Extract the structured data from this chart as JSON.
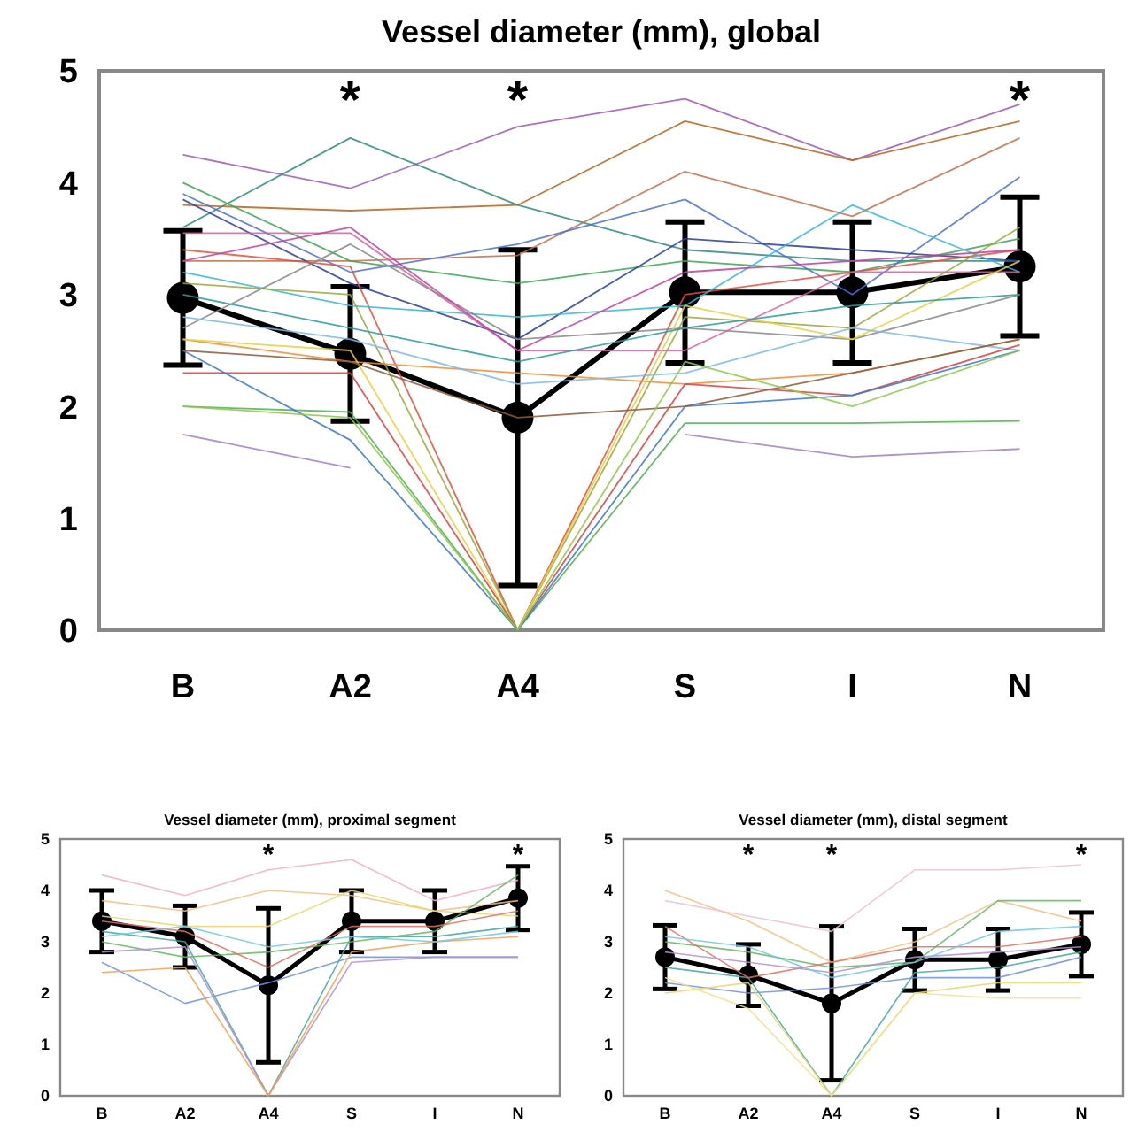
{
  "chart_data": [
    {
      "type": "line",
      "title": "Vessel diameter (mm), global",
      "categories": [
        "B",
        "A2",
        "A4",
        "S",
        "I",
        "N"
      ],
      "ylim": [
        0,
        5
      ],
      "yticks": [
        0,
        1,
        2,
        3,
        4,
        5
      ],
      "grid": false,
      "annotations": [
        "*",
        "*",
        "*"
      ],
      "series": [
        {
          "color": "#9b59b6",
          "marker": "none",
          "values": [
            4.25,
            3.95,
            4.5,
            4.75,
            4.2,
            4.7
          ]
        },
        {
          "color": "#2e8b7a",
          "marker": "none",
          "values": [
            3.6,
            4.4,
            3.8,
            3.4,
            3.3,
            3.3
          ]
        },
        {
          "color": "#b5651d",
          "marker": "none",
          "values": [
            3.8,
            3.75,
            3.8,
            4.55,
            4.2,
            4.55
          ]
        },
        {
          "color": "#c0704a",
          "marker": "none",
          "values": [
            3.3,
            3.3,
            3.35,
            4.1,
            3.7,
            4.4
          ]
        },
        {
          "color": "#3aa655",
          "marker": "none",
          "values": [
            4.0,
            3.3,
            3.1,
            3.3,
            3.2,
            3.5
          ]
        },
        {
          "color": "#4a6fd8",
          "marker": "none",
          "values": [
            3.9,
            3.2,
            3.45,
            3.85,
            3.0,
            4.05
          ]
        },
        {
          "color": "#2c3e9e",
          "marker": "none",
          "values": [
            3.85,
            3.1,
            2.6,
            3.5,
            3.4,
            3.3
          ]
        },
        {
          "color": "#e0503a",
          "marker": "none",
          "values": [
            3.4,
            3.25,
            0,
            3.0,
            3.2,
            3.4
          ]
        },
        {
          "color": "#36b7d8",
          "marker": "none",
          "values": [
            3.2,
            2.9,
            2.8,
            2.9,
            3.8,
            3.2
          ]
        },
        {
          "color": "#9aa83a",
          "marker": "none",
          "values": [
            3.1,
            3.0,
            0,
            2.8,
            2.7,
            3.6
          ]
        },
        {
          "color": "#d85fa0",
          "marker": "none",
          "values": [
            3.55,
            3.55,
            2.5,
            2.5,
            3.2,
            3.2
          ]
        },
        {
          "color": "#888888",
          "marker": "none",
          "values": [
            2.7,
            3.45,
            2.6,
            2.7,
            2.6,
            3.0
          ]
        },
        {
          "color": "#f08c30",
          "marker": "none",
          "values": [
            2.6,
            2.4,
            2.3,
            2.2,
            2.3,
            2.6
          ]
        },
        {
          "color": "#e8d040",
          "marker": "none",
          "values": [
            2.6,
            2.5,
            0,
            2.9,
            2.6,
            3.3
          ]
        },
        {
          "color": "#7fb8e8",
          "marker": "none",
          "values": [
            2.8,
            2.6,
            2.2,
            2.3,
            2.7,
            2.5
          ]
        },
        {
          "color": "#d84040",
          "marker": "none",
          "values": [
            2.3,
            2.3,
            0,
            2.2,
            2.1,
            2.55
          ]
        },
        {
          "color": "#50b050",
          "marker": "none",
          "values": [
            2.0,
            1.95,
            0,
            1.85,
            1.85,
            1.87
          ]
        },
        {
          "color": "#a080c8",
          "marker": "none",
          "values": [
            1.75,
            1.45,
            null,
            1.75,
            1.55,
            1.62
          ]
        },
        {
          "color": "#3a78c8",
          "marker": "none",
          "values": [
            2.5,
            1.7,
            0,
            2.0,
            2.1,
            2.5
          ]
        },
        {
          "color": "#8b5a3c",
          "marker": "none",
          "values": [
            2.5,
            2.4,
            1.9,
            2.0,
            2.3,
            2.6
          ]
        },
        {
          "color": "#8cc84a",
          "marker": "none",
          "values": [
            2.0,
            1.9,
            0,
            2.4,
            2.0,
            2.5
          ]
        },
        {
          "color": "#2a9a9a",
          "marker": "none",
          "values": [
            3.0,
            2.7,
            2.4,
            2.7,
            2.9,
            3.0
          ]
        },
        {
          "color": "#c040a0",
          "marker": "none",
          "values": [
            3.3,
            3.6,
            2.5,
            3.2,
            3.3,
            3.4
          ]
        },
        {
          "color": "#000000",
          "marker": "circle",
          "values": [
            2.97,
            2.47,
            1.9,
            3.02,
            3.02,
            3.25
          ],
          "errors": [
            0.6,
            0.6,
            1.5,
            0.63,
            0.63,
            0.62
          ]
        }
      ]
    },
    {
      "type": "line",
      "title": "Vessel diameter (mm), proximal segment",
      "categories": [
        "B",
        "A2",
        "A4",
        "S",
        "I",
        "N"
      ],
      "ylim": [
        0,
        5
      ],
      "yticks": [
        0,
        1,
        2,
        3,
        4,
        5
      ],
      "grid": false,
      "annotations": [
        "*",
        "*"
      ],
      "series": [
        {
          "color": "#f5c080",
          "marker": "none",
          "values": [
            3.8,
            3.6,
            4.0,
            3.9,
            3.6,
            3.8
          ]
        },
        {
          "color": "#f0b0c0",
          "marker": "none",
          "values": [
            4.3,
            3.9,
            4.4,
            4.6,
            3.8,
            4.2
          ]
        },
        {
          "color": "#40a8a0",
          "marker": "none",
          "values": [
            3.2,
            3.0,
            0,
            3.1,
            3.1,
            3.3
          ]
        },
        {
          "color": "#7090e0",
          "marker": "none",
          "values": [
            2.6,
            1.8,
            2.2,
            2.7,
            2.7,
            2.7
          ]
        },
        {
          "color": "#60b860",
          "marker": "none",
          "values": [
            3.0,
            2.7,
            2.8,
            3.0,
            3.2,
            4.3
          ]
        },
        {
          "color": "#e8d870",
          "marker": "none",
          "values": [
            3.5,
            3.3,
            3.3,
            4.0,
            3.6,
            3.5
          ]
        },
        {
          "color": "#b090d0",
          "marker": "none",
          "values": [
            2.8,
            2.9,
            0,
            2.6,
            2.7,
            2.7
          ]
        },
        {
          "color": "#e07060",
          "marker": "none",
          "values": [
            3.4,
            3.2,
            2.5,
            3.3,
            3.3,
            3.6
          ]
        },
        {
          "color": "#f0a050",
          "marker": "none",
          "values": [
            2.4,
            2.5,
            0,
            2.8,
            3.0,
            3.1
          ]
        },
        {
          "color": "#70c8e0",
          "marker": "none",
          "values": [
            3.1,
            3.3,
            2.9,
            3.1,
            3.0,
            3.2
          ]
        },
        {
          "color": "#000000",
          "marker": "circle",
          "values": [
            3.4,
            3.1,
            2.15,
            3.4,
            3.4,
            3.85
          ],
          "errors": [
            0.6,
            0.6,
            1.5,
            0.6,
            0.6,
            0.62
          ]
        }
      ]
    },
    {
      "type": "line",
      "title": "Vessel diameter (mm), distal segment",
      "categories": [
        "B",
        "A2",
        "A4",
        "S",
        "I",
        "N"
      ],
      "ylim": [
        0,
        5
      ],
      "yticks": [
        0,
        1,
        2,
        3,
        4,
        5
      ],
      "grid": false,
      "annotations": [
        "*",
        "*",
        "*"
      ],
      "series": [
        {
          "color": "#f5c080",
          "marker": "none",
          "values": [
            4.0,
            3.4,
            2.6,
            3.0,
            3.8,
            3.4
          ]
        },
        {
          "color": "#f0c0d0",
          "marker": "none",
          "values": [
            3.8,
            3.5,
            3.2,
            4.4,
            4.4,
            4.5
          ]
        },
        {
          "color": "#60b860",
          "marker": "none",
          "values": [
            3.0,
            2.8,
            2.5,
            2.6,
            3.8,
            3.8
          ]
        },
        {
          "color": "#40a8a0",
          "marker": "none",
          "values": [
            2.5,
            2.3,
            0,
            2.4,
            2.5,
            2.8
          ]
        },
        {
          "color": "#7090e0",
          "marker": "none",
          "values": [
            2.2,
            2.0,
            2.1,
            2.3,
            2.3,
            2.7
          ]
        },
        {
          "color": "#e8d870",
          "marker": "none",
          "values": [
            2.0,
            2.2,
            0,
            2.0,
            2.2,
            2.2
          ]
        },
        {
          "color": "#e07060",
          "marker": "none",
          "values": [
            3.3,
            2.3,
            2.6,
            2.9,
            2.9,
            3.1
          ]
        },
        {
          "color": "#f0e090",
          "marker": "none",
          "values": [
            2.3,
            1.7,
            0,
            2.0,
            1.9,
            1.9
          ]
        },
        {
          "color": "#b090d0",
          "marker": "none",
          "values": [
            2.8,
            2.6,
            2.4,
            2.7,
            2.8,
            2.9
          ]
        },
        {
          "color": "#70c8e0",
          "marker": "none",
          "values": [
            3.1,
            2.9,
            2.3,
            2.6,
            3.2,
            3.3
          ]
        },
        {
          "color": "#000000",
          "marker": "circle",
          "values": [
            2.7,
            2.35,
            1.8,
            2.65,
            2.65,
            2.95
          ],
          "errors": [
            0.62,
            0.6,
            1.5,
            0.6,
            0.6,
            0.62
          ]
        }
      ]
    }
  ]
}
